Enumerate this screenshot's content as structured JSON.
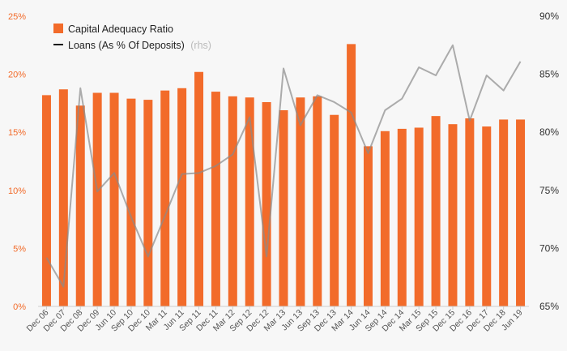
{
  "chart_data": {
    "type": "bar+line",
    "categories": [
      "Dec 06",
      "Dec 07",
      "Dec 08",
      "Dec 09",
      "Jun 10",
      "Sep 10",
      "Dec 10",
      "Mar 11",
      "Jun 11",
      "Sep 11",
      "Dec 11",
      "Mar 12",
      "Sep 12",
      "Dec 12",
      "Mar 13",
      "Jun 13",
      "Sep 13",
      "Dec 13",
      "Mar 14",
      "Jun 14",
      "Sep 14",
      "Dec 14",
      "Mar 15",
      "Sep 15",
      "Dec 15",
      "Dec 16",
      "Dec 17",
      "Dec 18",
      "Jun 19"
    ],
    "series": [
      {
        "name": "Capital Adequacy Ratio",
        "type": "bar",
        "axis": "left",
        "color": "#f26b2a",
        "values": [
          18.2,
          18.7,
          17.3,
          18.4,
          18.4,
          17.9,
          17.8,
          18.6,
          18.8,
          20.2,
          18.5,
          18.1,
          18.0,
          17.6,
          16.9,
          18.0,
          18.1,
          16.5,
          22.6,
          13.8,
          15.1,
          15.3,
          15.4,
          16.4,
          15.7,
          16.2,
          15.5,
          16.1,
          16.1
        ]
      },
      {
        "name": "Loans (As % Of Deposits)",
        "name_suffix": "(rhs)",
        "type": "line",
        "axis": "right",
        "color": "#8a8a8a",
        "values": [
          69.2,
          66.7,
          83.8,
          74.9,
          76.5,
          72.7,
          69.3,
          72.8,
          76.4,
          76.5,
          77.1,
          78.1,
          81.3,
          69.3,
          85.5,
          80.6,
          83.2,
          82.6,
          81.7,
          78.2,
          81.9,
          82.9,
          85.6,
          84.9,
          87.5,
          81.0,
          84.9,
          83.6,
          86.1
        ]
      }
    ],
    "y_left": {
      "ticks": [
        "0%",
        "5%",
        "10%",
        "15%",
        "20%",
        "25%"
      ],
      "lim": [
        0,
        25
      ]
    },
    "y_right": {
      "ticks": [
        "65%",
        "70%",
        "75%",
        "80%",
        "85%",
        "90%"
      ],
      "lim": [
        65,
        90
      ]
    },
    "grid": false,
    "legend": "top-left"
  }
}
